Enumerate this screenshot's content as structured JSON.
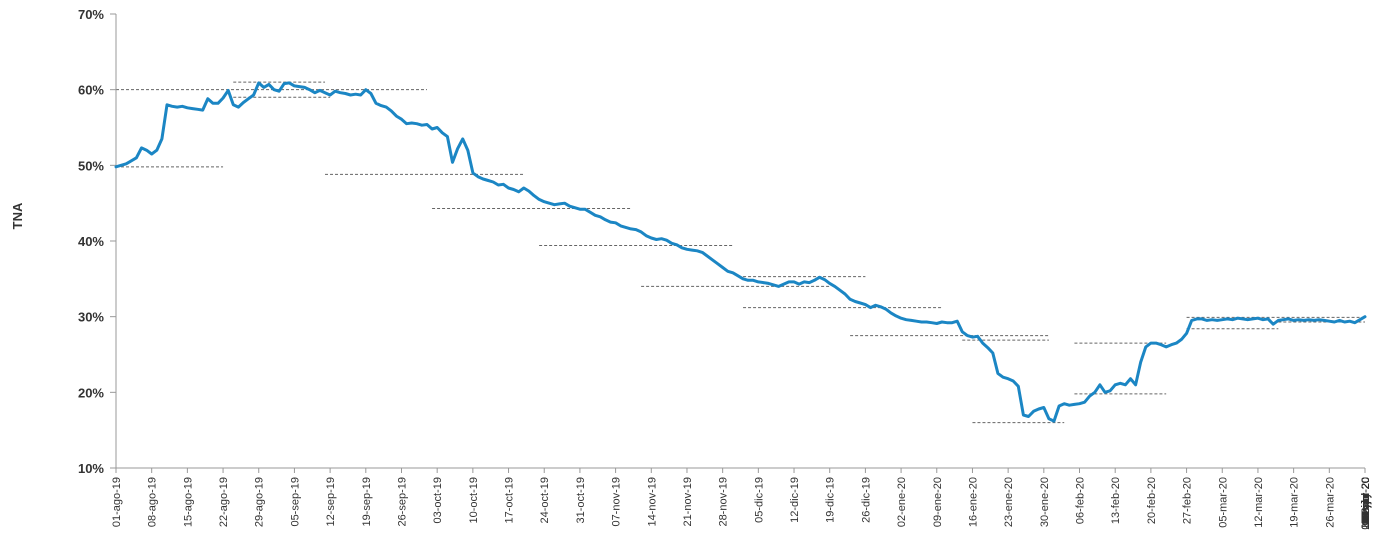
{
  "chart_data": {
    "type": "line",
    "title": "",
    "xlabel": "",
    "ylabel": "TNA",
    "ylim": [
      10,
      70
    ],
    "yticks": [
      10,
      20,
      30,
      40,
      50,
      60,
      70
    ],
    "ytick_labels": [
      "10%",
      "20%",
      "30%",
      "40%",
      "50%",
      "60%",
      "70%"
    ],
    "grid": false,
    "legend": "none",
    "colors": {
      "line": "#1b86c4",
      "ref_lines": "#666666",
      "axis": "#999999",
      "text": "#333333"
    },
    "x_labels": [
      "01-ago-19",
      "08-ago-19",
      "15-ago-19",
      "22-ago-19",
      "29-ago-19",
      "05-sep-19",
      "12-sep-19",
      "19-sep-19",
      "26-sep-19",
      "03-oct-19",
      "10-oct-19",
      "17-oct-19",
      "24-oct-19",
      "31-oct-19",
      "07-nov-19",
      "14-nov-19",
      "21-nov-19",
      "28-nov-19",
      "05-dic-19",
      "12-dic-19",
      "19-dic-19",
      "26-dic-19",
      "02-ene-20",
      "09-ene-20",
      "16-ene-20",
      "23-ene-20",
      "30-ene-20",
      "06-feb-20",
      "13-feb-20",
      "20-feb-20",
      "27-feb-20",
      "05-mar-20",
      "12-mar-20",
      "19-mar-20",
      "26-mar-20",
      "02-abr-20",
      "09-abr-20",
      "16-abr-20",
      "23-abr-20",
      "30-abr-20",
      "07-may-20",
      "14-may-20",
      "21-may-20",
      "28-may-20",
      "04-jun-20",
      "11-jun-20",
      "18-jun-20",
      "25-jun-20",
      "02-jul-20",
      "09-jul-20",
      "16-jul-20",
      "23-jul-20",
      "30-jul-20"
    ],
    "series": [
      {
        "values": [
          [
            0,
            49.8
          ],
          [
            2,
            50.2
          ],
          [
            4,
            51.0
          ],
          [
            5,
            52.3
          ],
          [
            6,
            52.0
          ],
          [
            7,
            51.5
          ],
          [
            8,
            52.0
          ],
          [
            9,
            53.5
          ],
          [
            10,
            58.0
          ],
          [
            11,
            57.8
          ],
          [
            12,
            57.7
          ],
          [
            13,
            57.8
          ],
          [
            14,
            57.6
          ],
          [
            15,
            57.5
          ],
          [
            16,
            57.4
          ],
          [
            17,
            57.3
          ],
          [
            18,
            58.8
          ],
          [
            19,
            58.2
          ],
          [
            20,
            58.2
          ],
          [
            21,
            58.9
          ],
          [
            22,
            59.9
          ],
          [
            23,
            58.0
          ],
          [
            24,
            57.7
          ],
          [
            25,
            58.3
          ],
          [
            26,
            58.8
          ],
          [
            27,
            59.3
          ],
          [
            28,
            60.9
          ],
          [
            29,
            60.3
          ],
          [
            30,
            60.7
          ],
          [
            31,
            60.0
          ],
          [
            32,
            59.8
          ],
          [
            33,
            60.8
          ],
          [
            34,
            60.9
          ],
          [
            35,
            60.5
          ],
          [
            36,
            60.4
          ],
          [
            37,
            60.3
          ],
          [
            38,
            60.0
          ],
          [
            39,
            59.6
          ],
          [
            40,
            59.9
          ],
          [
            41,
            59.6
          ],
          [
            42,
            59.3
          ],
          [
            43,
            59.8
          ],
          [
            44,
            59.6
          ],
          [
            45,
            59.5
          ],
          [
            46,
            59.3
          ],
          [
            47,
            59.4
          ],
          [
            48,
            59.3
          ],
          [
            49,
            60.0
          ],
          [
            50,
            59.5
          ],
          [
            51,
            58.2
          ],
          [
            52,
            57.9
          ],
          [
            53,
            57.7
          ],
          [
            54,
            57.2
          ],
          [
            55,
            56.5
          ],
          [
            56,
            56.1
          ],
          [
            57,
            55.5
          ],
          [
            58,
            55.6
          ],
          [
            59,
            55.5
          ],
          [
            60,
            55.3
          ],
          [
            61,
            55.4
          ],
          [
            62,
            54.8
          ],
          [
            63,
            55.0
          ],
          [
            64,
            54.3
          ],
          [
            65,
            53.8
          ],
          [
            66,
            50.4
          ],
          [
            67,
            52.2
          ],
          [
            68,
            53.5
          ],
          [
            69,
            52.0
          ],
          [
            70,
            49.0
          ],
          [
            71,
            48.5
          ],
          [
            72,
            48.2
          ],
          [
            73,
            48.0
          ],
          [
            74,
            47.8
          ],
          [
            75,
            47.4
          ],
          [
            76,
            47.5
          ],
          [
            77,
            47.0
          ],
          [
            78,
            46.8
          ],
          [
            79,
            46.5
          ],
          [
            80,
            47.0
          ],
          [
            81,
            46.6
          ],
          [
            82,
            46.0
          ],
          [
            83,
            45.5
          ],
          [
            84,
            45.2
          ],
          [
            85,
            45.0
          ],
          [
            86,
            44.8
          ],
          [
            87,
            44.9
          ],
          [
            88,
            45.0
          ],
          [
            89,
            44.6
          ],
          [
            90,
            44.4
          ],
          [
            91,
            44.2
          ],
          [
            92,
            44.2
          ],
          [
            93,
            43.8
          ],
          [
            94,
            43.4
          ],
          [
            95,
            43.2
          ],
          [
            96,
            42.8
          ],
          [
            97,
            42.5
          ],
          [
            98,
            42.4
          ],
          [
            99,
            42.0
          ],
          [
            100,
            41.8
          ],
          [
            101,
            41.6
          ],
          [
            102,
            41.5
          ],
          [
            103,
            41.2
          ],
          [
            104,
            40.7
          ],
          [
            105,
            40.4
          ],
          [
            106,
            40.2
          ],
          [
            107,
            40.3
          ],
          [
            108,
            40.1
          ],
          [
            109,
            39.7
          ],
          [
            110,
            39.5
          ],
          [
            111,
            39.1
          ],
          [
            112,
            38.9
          ],
          [
            113,
            38.8
          ],
          [
            114,
            38.7
          ],
          [
            115,
            38.5
          ],
          [
            116,
            38.0
          ],
          [
            117,
            37.5
          ],
          [
            118,
            37.0
          ],
          [
            119,
            36.5
          ],
          [
            120,
            36.0
          ],
          [
            121,
            35.8
          ],
          [
            122,
            35.4
          ],
          [
            123,
            35.0
          ],
          [
            124,
            34.8
          ],
          [
            125,
            34.8
          ],
          [
            126,
            34.6
          ],
          [
            127,
            34.5
          ],
          [
            128,
            34.4
          ],
          [
            129,
            34.2
          ],
          [
            130,
            34.0
          ],
          [
            131,
            34.3
          ],
          [
            132,
            34.6
          ],
          [
            133,
            34.6
          ],
          [
            134,
            34.3
          ],
          [
            135,
            34.6
          ],
          [
            136,
            34.5
          ],
          [
            137,
            34.8
          ],
          [
            138,
            35.2
          ],
          [
            139,
            34.9
          ],
          [
            140,
            34.4
          ],
          [
            141,
            34.0
          ],
          [
            142,
            33.5
          ],
          [
            143,
            33.0
          ],
          [
            144,
            32.3
          ],
          [
            145,
            32.0
          ],
          [
            146,
            31.8
          ],
          [
            147,
            31.6
          ],
          [
            148,
            31.2
          ],
          [
            149,
            31.5
          ],
          [
            150,
            31.3
          ],
          [
            151,
            31.0
          ],
          [
            152,
            30.5
          ],
          [
            153,
            30.1
          ],
          [
            154,
            29.8
          ],
          [
            155,
            29.6
          ],
          [
            156,
            29.5
          ],
          [
            157,
            29.4
          ],
          [
            158,
            29.3
          ],
          [
            159,
            29.3
          ],
          [
            160,
            29.2
          ],
          [
            161,
            29.1
          ],
          [
            162,
            29.3
          ],
          [
            163,
            29.2
          ],
          [
            164,
            29.2
          ],
          [
            165,
            29.4
          ],
          [
            166,
            28.0
          ],
          [
            167,
            27.5
          ],
          [
            168,
            27.3
          ],
          [
            169,
            27.4
          ],
          [
            170,
            26.5
          ],
          [
            171,
            25.9
          ],
          [
            172,
            25.2
          ],
          [
            173,
            22.5
          ],
          [
            174,
            22.0
          ],
          [
            175,
            21.8
          ],
          [
            176,
            21.5
          ],
          [
            177,
            20.8
          ],
          [
            178,
            17.0
          ],
          [
            179,
            16.8
          ],
          [
            180,
            17.5
          ],
          [
            181,
            17.8
          ],
          [
            182,
            18.0
          ],
          [
            183,
            16.5
          ],
          [
            184,
            16.2
          ],
          [
            185,
            18.2
          ],
          [
            186,
            18.5
          ],
          [
            187,
            18.3
          ],
          [
            188,
            18.4
          ],
          [
            189,
            18.5
          ],
          [
            190,
            18.7
          ],
          [
            191,
            19.5
          ],
          [
            192,
            20.0
          ],
          [
            193,
            21.0
          ],
          [
            194,
            20.0
          ],
          [
            195,
            20.2
          ],
          [
            196,
            21.0
          ],
          [
            197,
            21.2
          ],
          [
            198,
            21.0
          ],
          [
            199,
            21.8
          ],
          [
            200,
            21.0
          ],
          [
            201,
            24.0
          ],
          [
            202,
            26.0
          ],
          [
            203,
            26.5
          ],
          [
            204,
            26.5
          ],
          [
            205,
            26.3
          ],
          [
            206,
            26.0
          ],
          [
            207,
            26.3
          ],
          [
            208,
            26.5
          ],
          [
            209,
            27.0
          ],
          [
            210,
            27.8
          ],
          [
            211,
            29.5
          ],
          [
            212,
            29.7
          ],
          [
            213,
            29.7
          ],
          [
            214,
            29.5
          ],
          [
            215,
            29.6
          ],
          [
            216,
            29.5
          ],
          [
            217,
            29.6
          ],
          [
            218,
            29.7
          ],
          [
            219,
            29.6
          ],
          [
            220,
            29.8
          ],
          [
            221,
            29.7
          ],
          [
            222,
            29.6
          ],
          [
            223,
            29.7
          ],
          [
            224,
            29.8
          ],
          [
            225,
            29.6
          ],
          [
            226,
            29.7
          ],
          [
            227,
            29.0
          ],
          [
            228,
            29.5
          ],
          [
            229,
            29.6
          ],
          [
            230,
            29.7
          ],
          [
            231,
            29.5
          ],
          [
            232,
            29.6
          ],
          [
            233,
            29.5
          ],
          [
            234,
            29.6
          ],
          [
            235,
            29.5
          ],
          [
            236,
            29.6
          ],
          [
            237,
            29.5
          ],
          [
            238,
            29.4
          ],
          [
            239,
            29.3
          ],
          [
            240,
            29.5
          ],
          [
            241,
            29.3
          ],
          [
            242,
            29.4
          ],
          [
            243,
            29.2
          ],
          [
            244,
            29.6
          ],
          [
            245,
            30.0
          ]
        ]
      }
    ],
    "reference_lines": [
      {
        "y": 49.8,
        "x": [
          0,
          21
        ]
      },
      {
        "y": 60.0,
        "x": [
          0,
          61
        ]
      },
      {
        "y": 61.0,
        "x": [
          23,
          41
        ]
      },
      {
        "y": 59.0,
        "x": [
          23,
          42
        ]
      },
      {
        "y": 48.8,
        "x": [
          41,
          80
        ]
      },
      {
        "y": 44.3,
        "x": [
          62,
          101
        ]
      },
      {
        "y": 39.4,
        "x": [
          83,
          121
        ]
      },
      {
        "y": 34.0,
        "x": [
          103,
          140
        ]
      },
      {
        "y": 35.3,
        "x": [
          123,
          147
        ]
      },
      {
        "y": 31.2,
        "x": [
          123,
          162
        ]
      },
      {
        "y": 27.5,
        "x": [
          144,
          183
        ]
      },
      {
        "y": 26.9,
        "x": [
          166,
          183
        ]
      },
      {
        "y": 16.0,
        "x": [
          168,
          186
        ]
      },
      {
        "y": 26.5,
        "x": [
          188,
          206
        ]
      },
      {
        "y": 19.8,
        "x": [
          188,
          206
        ]
      },
      {
        "y": 29.9,
        "x": [
          210,
          245
        ]
      },
      {
        "y": 28.4,
        "x": [
          210,
          228
        ]
      },
      {
        "y": 29.3,
        "x": [
          228,
          245
        ]
      }
    ],
    "x_domain": [
      0,
      245
    ]
  }
}
